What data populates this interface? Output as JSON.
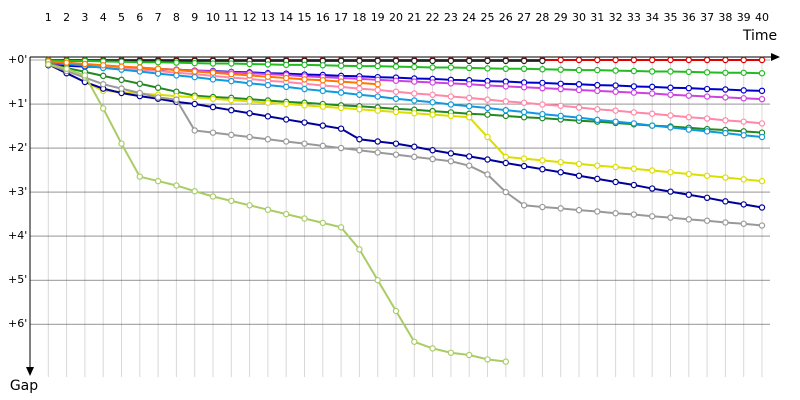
{
  "chart_data": {
    "type": "line",
    "x": [
      1,
      2,
      3,
      4,
      5,
      6,
      7,
      8,
      9,
      10,
      11,
      12,
      13,
      14,
      15,
      16,
      17,
      18,
      19,
      20,
      21,
      22,
      23,
      24,
      25,
      26,
      27,
      28,
      29,
      30,
      31,
      32,
      33,
      34,
      35,
      36,
      37,
      38,
      39,
      40
    ],
    "xlim": [
      0,
      40
    ],
    "xticks": [
      1,
      2,
      3,
      4,
      5,
      6,
      7,
      8,
      9,
      10,
      11,
      12,
      13,
      14,
      15,
      16,
      17,
      18,
      19,
      20,
      21,
      22,
      23,
      24,
      25,
      26,
      27,
      28,
      29,
      30,
      31,
      32,
      33,
      34,
      35,
      36,
      37,
      38,
      39,
      40
    ],
    "ylim": [
      0,
      7.2
    ],
    "yticks": [
      {
        "value": 0,
        "label": "+0'"
      },
      {
        "value": 1,
        "label": "+1'"
      },
      {
        "value": 2,
        "label": "+2'"
      },
      {
        "value": 3,
        "label": "+3'"
      },
      {
        "value": 4,
        "label": "+4'"
      },
      {
        "value": 5,
        "label": "+5'"
      },
      {
        "value": 6,
        "label": "+6'"
      }
    ],
    "x_label": "Time",
    "y_label": "Gap",
    "grid": true,
    "series": [
      {
        "color": "#dd0000",
        "values": [
          0,
          0,
          0,
          0,
          0,
          0,
          0,
          0,
          0,
          0,
          0,
          0,
          0,
          0,
          0,
          0,
          0,
          0,
          0,
          0,
          0,
          0,
          0,
          0,
          0,
          0,
          0,
          0,
          0,
          0,
          0,
          0,
          0,
          0,
          0,
          0,
          0,
          0,
          0,
          0
        ]
      },
      {
        "color": "#222222",
        "values": [
          0.02,
          0.02,
          0.02,
          0.02,
          0.02,
          0.02,
          0.02,
          0.02,
          0.02,
          0.02,
          0.02,
          0.02,
          0.02,
          0.02,
          0.02,
          0.02,
          0.02,
          0.02,
          0.02,
          0.02,
          0.02,
          0.02,
          0.02,
          0.02,
          0.02,
          0.02,
          0.02,
          0.02,
          null,
          null,
          null,
          null,
          null,
          null,
          null,
          null,
          null,
          null,
          null,
          null
        ]
      },
      {
        "color": "#22bb22",
        "values": [
          0.01,
          0.02,
          0.02,
          0.03,
          0.04,
          0.05,
          0.05,
          0.06,
          0.07,
          0.08,
          0.08,
          0.09,
          0.1,
          0.11,
          0.11,
          0.12,
          0.13,
          0.14,
          0.14,
          0.15,
          0.16,
          0.17,
          0.17,
          0.18,
          0.19,
          0.2,
          0.2,
          0.21,
          0.22,
          0.23,
          0.23,
          0.24,
          0.25,
          0.26,
          0.26,
          0.27,
          0.28,
          0.29,
          0.29,
          0.3
        ]
      },
      {
        "color": "#0000cc",
        "values": [
          0.12,
          0.13,
          0.15,
          0.16,
          0.18,
          0.19,
          0.21,
          0.22,
          0.24,
          0.25,
          0.27,
          0.28,
          0.3,
          0.31,
          0.33,
          0.34,
          0.36,
          0.37,
          0.39,
          0.4,
          0.42,
          0.43,
          0.45,
          0.46,
          0.48,
          0.49,
          0.51,
          0.52,
          0.54,
          0.55,
          0.57,
          0.58,
          0.6,
          0.61,
          0.63,
          0.64,
          0.66,
          0.67,
          0.69,
          0.7
        ]
      },
      {
        "color": "#cc44dd",
        "values": [
          0.07,
          0.09,
          0.11,
          0.13,
          0.16,
          0.18,
          0.2,
          0.22,
          0.24,
          0.26,
          0.28,
          0.3,
          0.32,
          0.34,
          0.37,
          0.39,
          0.41,
          0.43,
          0.45,
          0.47,
          0.49,
          0.51,
          0.53,
          0.55,
          0.58,
          0.6,
          0.62,
          0.64,
          0.66,
          0.68,
          0.7,
          0.72,
          0.74,
          0.76,
          0.79,
          0.81,
          0.83,
          0.85,
          0.87,
          0.89
        ]
      },
      {
        "color": "#ff88aa",
        "values": [
          0.04,
          0.07,
          0.11,
          0.14,
          0.18,
          0.22,
          0.25,
          0.29,
          0.32,
          0.36,
          0.4,
          0.43,
          0.47,
          0.5,
          0.54,
          0.58,
          0.61,
          0.65,
          0.68,
          0.72,
          0.76,
          0.79,
          0.83,
          0.86,
          0.9,
          0.94,
          0.97,
          1.01,
          1.04,
          1.08,
          1.12,
          1.15,
          1.19,
          1.22,
          1.26,
          1.3,
          1.33,
          1.37,
          1.4,
          1.44
        ]
      },
      {
        "color": "#228822",
        "values": [
          0.09,
          0.18,
          0.27,
          0.36,
          0.45,
          0.54,
          0.63,
          0.72,
          0.81,
          0.84,
          0.86,
          0.89,
          0.92,
          0.95,
          0.97,
          1.0,
          1.03,
          1.05,
          1.08,
          1.11,
          1.13,
          1.16,
          1.19,
          1.22,
          1.24,
          1.27,
          1.3,
          1.32,
          1.35,
          1.38,
          1.4,
          1.43,
          1.46,
          1.49,
          1.51,
          1.54,
          1.57,
          1.59,
          1.62,
          1.65
        ]
      },
      {
        "color": "#1199dd",
        "values": [
          0.04,
          0.09,
          0.13,
          0.18,
          0.22,
          0.26,
          0.31,
          0.35,
          0.39,
          0.44,
          0.48,
          0.53,
          0.57,
          0.61,
          0.66,
          0.7,
          0.74,
          0.79,
          0.83,
          0.88,
          0.92,
          0.96,
          1.01,
          1.05,
          1.09,
          1.14,
          1.18,
          1.23,
          1.27,
          1.31,
          1.36,
          1.4,
          1.44,
          1.49,
          1.53,
          1.58,
          1.62,
          1.66,
          1.71,
          1.75
        ]
      },
      {
        "color": "#ff7700",
        "values": [
          0.03,
          0.06,
          0.09,
          0.12,
          0.15,
          0.17,
          0.2,
          0.23,
          0.26,
          0.29,
          0.32,
          0.35,
          0.38,
          0.41,
          0.44,
          0.46,
          0.49,
          0.52,
          0.55,
          null,
          null,
          null,
          null,
          null,
          null,
          null,
          null,
          null,
          null,
          null,
          null,
          null,
          null,
          null,
          null,
          null,
          null,
          null,
          null,
          null
        ]
      },
      {
        "color": "#dddd00",
        "values": [
          0.1,
          0.3,
          0.5,
          0.7,
          0.73,
          0.76,
          0.79,
          0.82,
          0.85,
          0.88,
          0.91,
          0.94,
          0.97,
          1.0,
          1.03,
          1.06,
          1.09,
          1.12,
          1.15,
          1.18,
          1.21,
          1.24,
          1.27,
          1.3,
          1.75,
          2.2,
          2.24,
          2.28,
          2.32,
          2.36,
          2.4,
          2.43,
          2.47,
          2.51,
          2.55,
          2.59,
          2.63,
          2.67,
          2.71,
          2.75
        ]
      },
      {
        "color": "#000099",
        "values": [
          0.1,
          0.3,
          0.5,
          0.65,
          0.75,
          0.82,
          0.88,
          0.95,
          1.0,
          1.07,
          1.14,
          1.21,
          1.28,
          1.35,
          1.42,
          1.49,
          1.56,
          1.8,
          1.85,
          1.9,
          1.97,
          2.05,
          2.12,
          2.19,
          2.26,
          2.34,
          2.41,
          2.48,
          2.55,
          2.63,
          2.7,
          2.77,
          2.84,
          2.92,
          2.99,
          3.06,
          3.13,
          3.21,
          3.28,
          3.35
        ]
      },
      {
        "color": "#999999",
        "values": [
          0.1,
          0.25,
          0.4,
          0.55,
          0.65,
          0.75,
          0.85,
          0.9,
          1.6,
          1.65,
          1.7,
          1.75,
          1.8,
          1.85,
          1.9,
          1.95,
          2.0,
          2.05,
          2.1,
          2.15,
          2.2,
          2.25,
          2.3,
          2.4,
          2.6,
          3.0,
          3.3,
          3.34,
          3.37,
          3.41,
          3.44,
          3.48,
          3.51,
          3.55,
          3.58,
          3.62,
          3.65,
          3.69,
          3.72,
          3.76
        ]
      },
      {
        "color": "#aacc66",
        "values": [
          0.1,
          0.2,
          0.35,
          1.1,
          1.9,
          2.65,
          2.75,
          2.85,
          2.98,
          3.1,
          3.2,
          3.3,
          3.4,
          3.5,
          3.6,
          3.7,
          3.8,
          4.3,
          5.0,
          5.7,
          6.4,
          6.55,
          6.65,
          6.7,
          6.8,
          6.85,
          null,
          null,
          null,
          null,
          null,
          null,
          null,
          null,
          null,
          null,
          null,
          null,
          null,
          null
        ]
      }
    ]
  }
}
